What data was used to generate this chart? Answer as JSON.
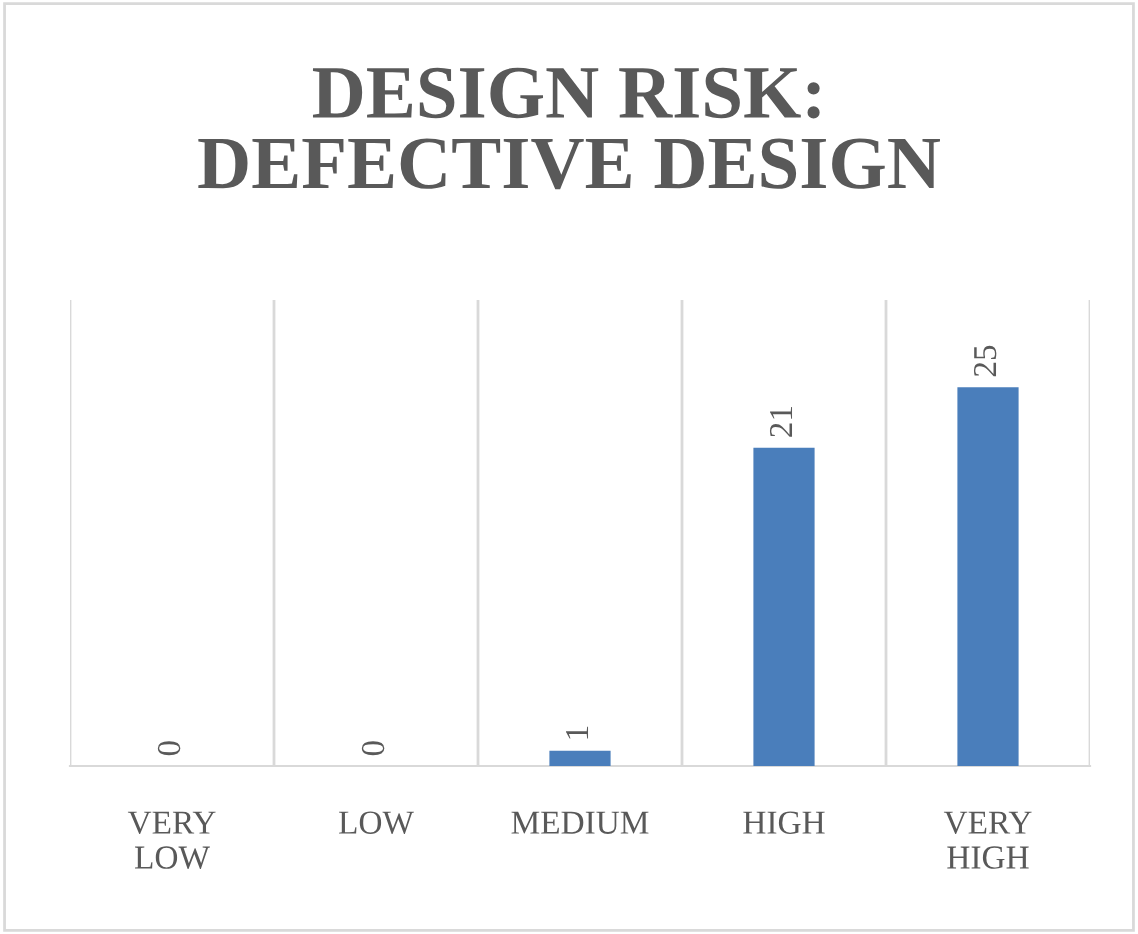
{
  "chart_data": {
    "type": "bar",
    "title": "DESIGN RISK:\nDEFECTIVE DESIGN",
    "categories": [
      "VERY LOW",
      "LOW",
      "MEDIUM",
      "HIGH",
      "VERY HIGH"
    ],
    "values": [
      0,
      0,
      1,
      21,
      25
    ],
    "color": "#4a7ebb",
    "data_labels": true,
    "grid": "x",
    "legend": false
  }
}
